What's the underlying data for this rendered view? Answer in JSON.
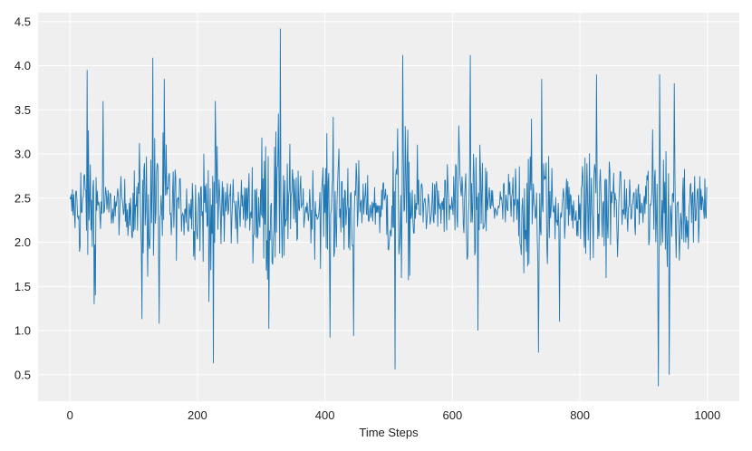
{
  "chart_data": {
    "type": "line",
    "title": "",
    "xlabel": "Time Steps",
    "ylabel": "",
    "xlim": [
      -50,
      1050
    ],
    "ylim": [
      0.2,
      4.6
    ],
    "x_ticks": [
      0,
      200,
      400,
      600,
      800,
      1000
    ],
    "y_ticks": [
      0.5,
      1.0,
      1.5,
      2.0,
      2.5,
      3.0,
      3.5,
      4.0,
      4.5
    ],
    "x_tick_labels": [
      "0",
      "200",
      "400",
      "600",
      "800",
      "1000"
    ],
    "y_tick_labels": [
      "0.5",
      "1.0",
      "1.5",
      "2.0",
      "2.5",
      "3.0",
      "3.5",
      "4.0",
      "4.5"
    ],
    "grid": true,
    "legend": "none",
    "background_color": "#efefef",
    "grid_color": "#ffffff",
    "series_color": "#1f77b4",
    "series": [
      {
        "n_points": 1000,
        "x_start": 0,
        "x_step": 1,
        "baseline": 2.4,
        "volatility_profile": [
          [
            0,
            0.2
          ],
          [
            20,
            0.7
          ],
          [
            40,
            0.7
          ],
          [
            55,
            0.25
          ],
          [
            95,
            0.3
          ],
          [
            115,
            0.75
          ],
          [
            150,
            0.75
          ],
          [
            175,
            0.3
          ],
          [
            205,
            0.6
          ],
          [
            225,
            0.85
          ],
          [
            245,
            0.55
          ],
          [
            270,
            0.25
          ],
          [
            290,
            0.6
          ],
          [
            310,
            0.85
          ],
          [
            340,
            0.75
          ],
          [
            365,
            0.25
          ],
          [
            395,
            0.55
          ],
          [
            420,
            0.7
          ],
          [
            445,
            0.55
          ],
          [
            475,
            0.2
          ],
          [
            495,
            0.5
          ],
          [
            515,
            0.85
          ],
          [
            540,
            0.7
          ],
          [
            565,
            0.2
          ],
          [
            590,
            0.45
          ],
          [
            615,
            0.75
          ],
          [
            645,
            0.65
          ],
          [
            670,
            0.2
          ],
          [
            695,
            0.45
          ],
          [
            715,
            0.75
          ],
          [
            745,
            0.7
          ],
          [
            770,
            0.25
          ],
          [
            795,
            0.4
          ],
          [
            815,
            0.8
          ],
          [
            845,
            0.7
          ],
          [
            870,
            0.25
          ],
          [
            900,
            0.45
          ],
          [
            920,
            0.85
          ],
          [
            950,
            0.65
          ],
          [
            975,
            0.3
          ],
          [
            999,
            0.3
          ]
        ],
        "extremes": [
          [
            27,
            3.95
          ],
          [
            52,
            3.6
          ],
          [
            38,
            1.3
          ],
          [
            113,
            1.13
          ],
          [
            130,
            4.09
          ],
          [
            140,
            1.08
          ],
          [
            148,
            3.85
          ],
          [
            225,
            0.63
          ],
          [
            228,
            3.6
          ],
          [
            330,
            4.42
          ],
          [
            312,
            1.02
          ],
          [
            408,
            0.92
          ],
          [
            413,
            3.42
          ],
          [
            445,
            0.94
          ],
          [
            510,
            0.56
          ],
          [
            522,
            4.12
          ],
          [
            628,
            4.12
          ],
          [
            640,
            1.0
          ],
          [
            735,
            0.75
          ],
          [
            740,
            3.85
          ],
          [
            768,
            1.1
          ],
          [
            826,
            1.02
          ],
          [
            826,
            3.9
          ],
          [
            923,
            0.37
          ],
          [
            925,
            3.9
          ],
          [
            940,
            0.5
          ],
          [
            948,
            3.8
          ]
        ]
      }
    ]
  }
}
